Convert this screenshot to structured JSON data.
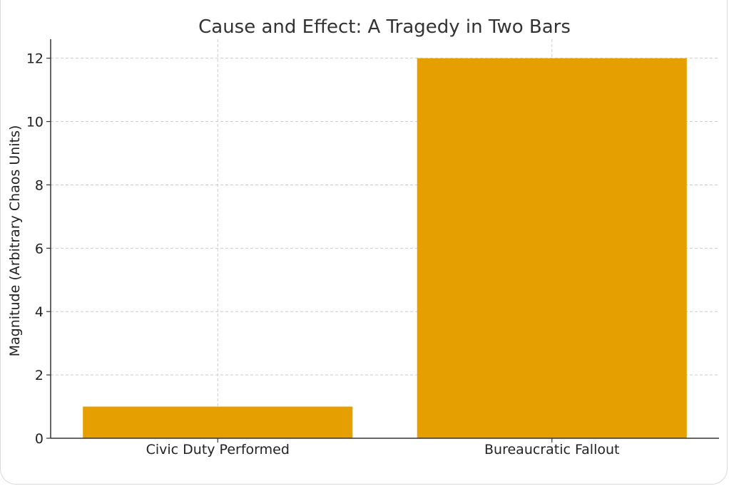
{
  "chart_data": {
    "type": "bar",
    "title": "Cause and Effect: A Tragedy in Two Bars",
    "xlabel": "",
    "ylabel": "Magnitude (Arbitrary Chaos Units)",
    "categories": [
      "Civic Duty Performed",
      "Bureaucratic Fallout"
    ],
    "values": [
      1,
      12
    ],
    "ylim": [
      0,
      12.6
    ],
    "yticks": [
      "0",
      "2",
      "4",
      "6",
      "8",
      "10",
      "12"
    ],
    "grid": true,
    "bar_color": "#e69f00",
    "grid_color": "#cccccc",
    "axis_color": "#333333"
  }
}
